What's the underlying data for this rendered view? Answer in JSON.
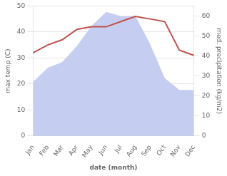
{
  "chart_data": {
    "type": "line",
    "xlabel": "date (month)",
    "ylabel": "max temp (C)",
    "y2label": "med. precipitation (kg/m2)",
    "categories": [
      "Jan",
      "Feb",
      "Mar",
      "Apr",
      "May",
      "Jun",
      "Jul",
      "Aug",
      "Sep",
      "Oct",
      "Nov",
      "Dec"
    ],
    "series": [
      {
        "type": "area",
        "axis": "y2",
        "color": "#c5cef0",
        "values": [
          27,
          34,
          37,
          45,
          55,
          62,
          60,
          60,
          46,
          29,
          23,
          23
        ]
      },
      {
        "type": "line",
        "color": "#c0504d",
        "values": [
          32,
          35,
          37,
          41,
          42,
          42,
          44,
          46,
          45,
          44,
          33,
          31
        ]
      }
    ],
    "ylim": [
      0,
      50
    ],
    "yticks": [
      0,
      10,
      20,
      30,
      40,
      50
    ],
    "y2lim": [
      0,
      65
    ],
    "y2ticks": [
      0,
      10,
      20,
      30,
      40,
      50,
      60
    ],
    "grid": true
  }
}
